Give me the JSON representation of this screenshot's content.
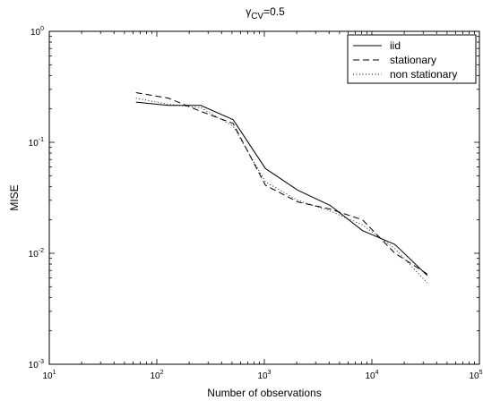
{
  "chart_data": {
    "type": "line",
    "title": {
      "main": "γ",
      "subscript": "CV",
      "suffix": "=0.5"
    },
    "xlabel": "Number of observations",
    "ylabel": "MISE",
    "xscale": "log",
    "yscale": "log",
    "xlim": [
      10,
      100000
    ],
    "ylim": [
      0.001,
      1
    ],
    "x_ticks": [
      {
        "base": "10",
        "exp": "1",
        "value": 10
      },
      {
        "base": "10",
        "exp": "2",
        "value": 100
      },
      {
        "base": "10",
        "exp": "3",
        "value": 1000
      },
      {
        "base": "10",
        "exp": "4",
        "value": 10000
      },
      {
        "base": "10",
        "exp": "5",
        "value": 100000
      }
    ],
    "y_ticks": [
      {
        "base": "10",
        "exp": "-3",
        "value": 0.001
      },
      {
        "base": "10",
        "exp": "-2",
        "value": 0.01
      },
      {
        "base": "10",
        "exp": "-1",
        "value": 0.1
      },
      {
        "base": "10",
        "exp": "0",
        "value": 1
      }
    ],
    "grid": false,
    "legend_position": "top-right",
    "x": [
      64,
      128,
      256,
      512,
      1024,
      2048,
      4096,
      8192,
      16384,
      32768
    ],
    "series": [
      {
        "name": "iid",
        "dash": "solid",
        "values": [
          0.23,
          0.215,
          0.215,
          0.16,
          0.058,
          0.037,
          0.027,
          0.016,
          0.012,
          0.0063
        ]
      },
      {
        "name": "stationary",
        "dash": "dashed",
        "values": [
          0.28,
          0.25,
          0.19,
          0.148,
          0.041,
          0.029,
          0.025,
          0.02,
          0.01,
          0.0065
        ]
      },
      {
        "name": "non stationary",
        "dash": "dotted",
        "values": [
          0.25,
          0.22,
          0.205,
          0.14,
          0.044,
          0.03,
          0.024,
          0.018,
          0.011,
          0.0054
        ]
      }
    ]
  }
}
